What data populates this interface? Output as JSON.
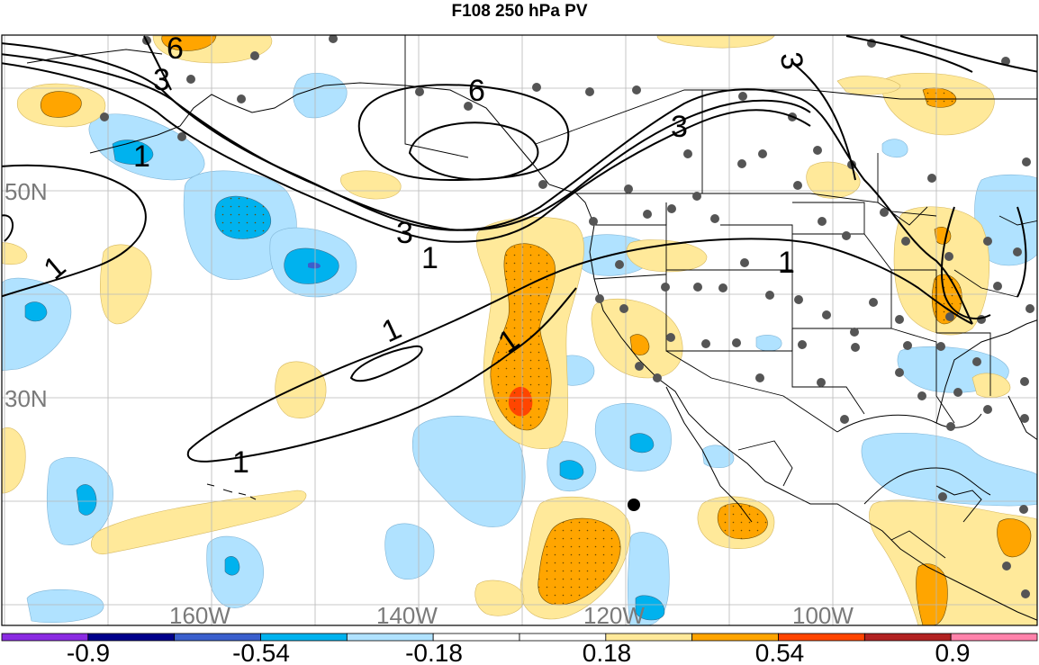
{
  "title": "F108 250 hPa PV",
  "latitude_labels": [
    "50N",
    "30N"
  ],
  "longitude_labels": [
    "160W",
    "140W",
    "120W",
    "100W"
  ],
  "contour_labels": [
    "6",
    "3",
    "1",
    "6",
    "3",
    "3",
    "3",
    "1",
    "1",
    "1",
    "1",
    "1",
    "1",
    "1"
  ],
  "colorbar": {
    "tick_labels": [
      "-0.9",
      "-0.54",
      "-0.18",
      "0.18",
      "0.54",
      "0.9"
    ],
    "colors": [
      "#8a2be2",
      "#00008b",
      "#3a5fcd",
      "#00b2ee",
      "#b0e2ff",
      "#ffffff",
      "#ffffff",
      "#ffe99a",
      "#ffa500",
      "#ff4500",
      "#b22222",
      "#ff82ab"
    ]
  },
  "colors": {
    "land_line": "#000000",
    "grid": "#b8b8b8",
    "station_dot": "#555555",
    "marker": "#000000"
  }
}
